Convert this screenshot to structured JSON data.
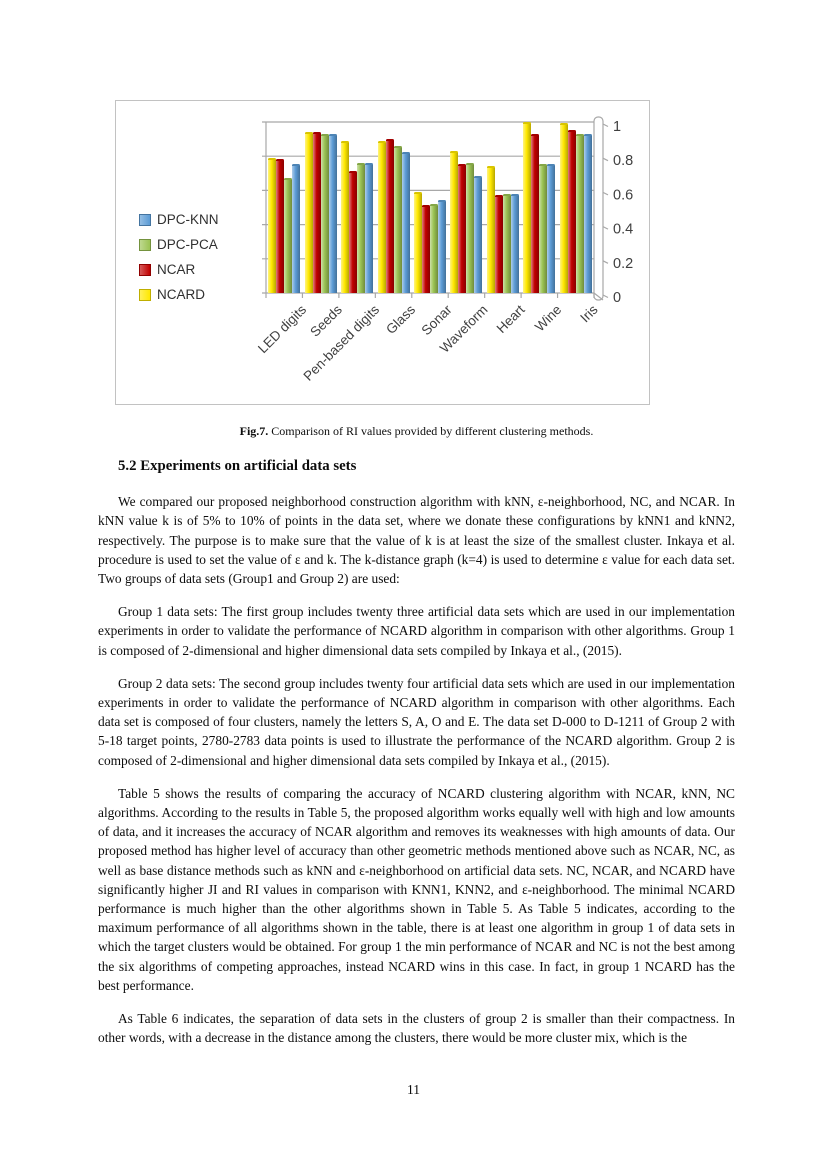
{
  "page": {
    "number": "11"
  },
  "figure": {
    "caption_label": "Fig.7.",
    "caption_text": "Comparison of RI values provided by different clustering methods."
  },
  "section_heading": "5.2 Experiments on artificial data sets",
  "paragraphs": [
    "We compared our proposed neighborhood construction algorithm with kNN, ε-neighborhood, NC, and NCAR. In kNN value k is of 5% to 10% of points in the data set, where we donate these configurations by kNN1 and kNN2, respectively. The purpose is to make sure that the value of k is at least the size of the smallest cluster. Inkaya et al. procedure is used to set the value of ε and k. The k-distance graph (k=4) is used to determine ε value for each data set. Two groups of data sets (Group1 and Group 2) are used:",
    "Group 1 data sets: The first group includes twenty three artificial data sets which are used in our implementation experiments in order to validate the performance of NCARD algorithm in comparison with other algorithms. Group 1 is composed of 2-dimensional and higher dimensional data sets compiled by Inkaya et al., (2015).",
    "Group 2 data sets: The second group includes twenty four artificial data sets which are used in our implementation experiments in order to validate the performance of NCARD algorithm in comparison with other algorithms. Each data set is composed of four clusters, namely the letters S, A, O and E. The data set D-000 to D-1211 of Group 2 with 5-18 target points, 2780-2783 data points is used to illustrate the performance of the NCARD algorithm. Group 2 is composed of 2-dimensional and higher dimensional data sets compiled by Inkaya et al., (2015).",
    "Table 5 shows the results of comparing the accuracy of NCARD clustering algorithm with NCAR, kNN, NC algorithms. According to the results in Table 5, the proposed algorithm works equally well with high and low amounts of data, and it increases the accuracy of NCAR algorithm and removes its weaknesses with high amounts of data. Our proposed method has higher level of accuracy than other geometric methods mentioned above such as NCAR, NC, as well as base distance methods such as kNN and ε-neighborhood on artificial data sets. NC, NCAR, and NCARD have significantly higher JI and RI values in comparison with KNN1, KNN2, and ε-neighborhood. The minimal NCARD performance is much higher than the other algorithms shown in Table 5. As Table 5 indicates, according to the maximum performance of all algorithms shown in the table, there is at least one algorithm in group 1 of data sets in which the target clusters would be obtained. For group 1 the min performance of NCAR and NC is not the best among the six algorithms of competing approaches, instead NCARD wins in this case. In fact, in group 1 NCARD has the best performance.",
    "As Table 6 indicates, the separation of data sets in the clusters of group 2 is smaller than their compactness. In other words, with a decrease in the distance among the clusters, there would be more cluster mix, which is the"
  ],
  "chart_data": {
    "type": "bar",
    "style": "3d-clustered-column",
    "title": "",
    "xlabel": "",
    "ylabel": "",
    "categories": [
      "LED digits",
      "Seeds",
      "Pen-based digits",
      "Glass",
      "Sonar",
      "Waveform",
      "Heart",
      "Wine",
      "Iris"
    ],
    "series": [
      {
        "name": "DPC-KNN",
        "color": "#5B9BD5",
        "values": [
          0.74,
          0.92,
          0.75,
          0.81,
          0.53,
          0.67,
          0.57,
          0.74,
          0.92
        ]
      },
      {
        "name": "DPC-PCA",
        "color": "#9BC353",
        "values": [
          0.66,
          0.92,
          0.75,
          0.85,
          0.51,
          0.75,
          0.57,
          0.74,
          0.92
        ]
      },
      {
        "name": "NCAR",
        "color": "#C00000",
        "values": [
          0.77,
          0.93,
          0.7,
          0.89,
          0.5,
          0.74,
          0.56,
          0.92,
          0.94
        ]
      },
      {
        "name": "NCARD",
        "color": "#FFE800",
        "values": [
          0.78,
          0.93,
          0.88,
          0.88,
          0.58,
          0.82,
          0.73,
          0.99,
          0.98
        ]
      }
    ],
    "bar_draw_order": [
      "NCARD",
      "NCAR",
      "DPC-PCA",
      "DPC-KNN"
    ],
    "legend": {
      "position": "left",
      "entries": [
        "DPC-KNN",
        "DPC-PCA",
        "NCAR",
        "NCARD"
      ]
    },
    "y_axis": {
      "side": "right",
      "min": 0,
      "max": 1,
      "ticks": [
        "1",
        "0.8",
        "0.6",
        "0.4",
        "0.2",
        "0"
      ],
      "tick_values": [
        1,
        0.8,
        0.6,
        0.4,
        0.2,
        0
      ]
    },
    "grid": true,
    "grid_color": "#a8a8a8",
    "label_color": "#3f3f3f"
  }
}
